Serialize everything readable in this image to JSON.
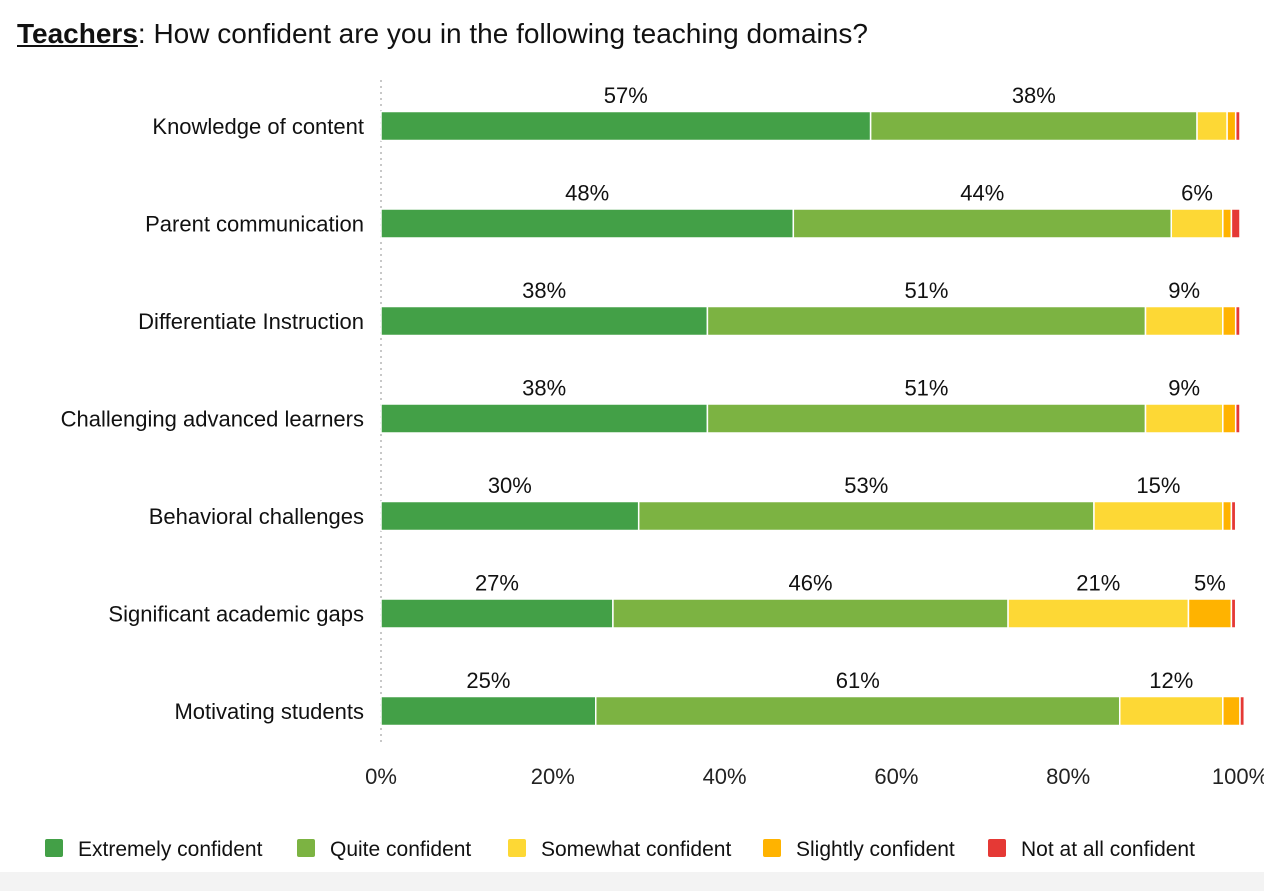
{
  "title": {
    "prefix": "Teachers",
    "question": ": How confident are you in the following teaching domains?"
  },
  "chart_data": {
    "type": "bar",
    "orientation": "horizontal",
    "stacked": true,
    "categories": [
      "Knowledge of content",
      "Parent communication",
      "Differentiate Instruction",
      "Challenging advanced learners",
      "Behavioral challenges",
      "Significant academic gaps",
      "Motivating students"
    ],
    "series": [
      {
        "name": "Extremely confident",
        "color": "#43a047",
        "values": [
          57,
          48,
          38,
          38,
          30,
          27,
          25
        ]
      },
      {
        "name": "Quite confident",
        "color": "#7cb342",
        "values": [
          38,
          44,
          51,
          51,
          53,
          46,
          61
        ]
      },
      {
        "name": "Somewhat confident",
        "color": "#fdd835",
        "values": [
          3.5,
          6,
          9,
          9,
          15,
          21,
          12
        ]
      },
      {
        "name": "Slightly confident",
        "color": "#ffb300",
        "values": [
          1,
          1,
          1.5,
          1.5,
          1,
          5,
          2
        ]
      },
      {
        "name": "Not at all confident",
        "color": "#e53935",
        "values": [
          0.5,
          1,
          0.5,
          0.5,
          0.5,
          0.5,
          0.5
        ]
      }
    ],
    "data_labels": [
      [
        "57%",
        "38%",
        "",
        "",
        ""
      ],
      [
        "48%",
        "44%",
        "6%",
        "",
        ""
      ],
      [
        "38%",
        "51%",
        "9%",
        "",
        ""
      ],
      [
        "38%",
        "51%",
        "9%",
        "",
        ""
      ],
      [
        "30%",
        "53%",
        "15%",
        "",
        ""
      ],
      [
        "27%",
        "46%",
        "21%",
        "5%",
        ""
      ],
      [
        "25%",
        "61%",
        "12%",
        "",
        ""
      ]
    ],
    "xlim": [
      0,
      100
    ],
    "x_ticks": [
      "0%",
      "20%",
      "40%",
      "60%",
      "80%",
      "100%"
    ],
    "grid": false,
    "legend_position": "bottom"
  }
}
